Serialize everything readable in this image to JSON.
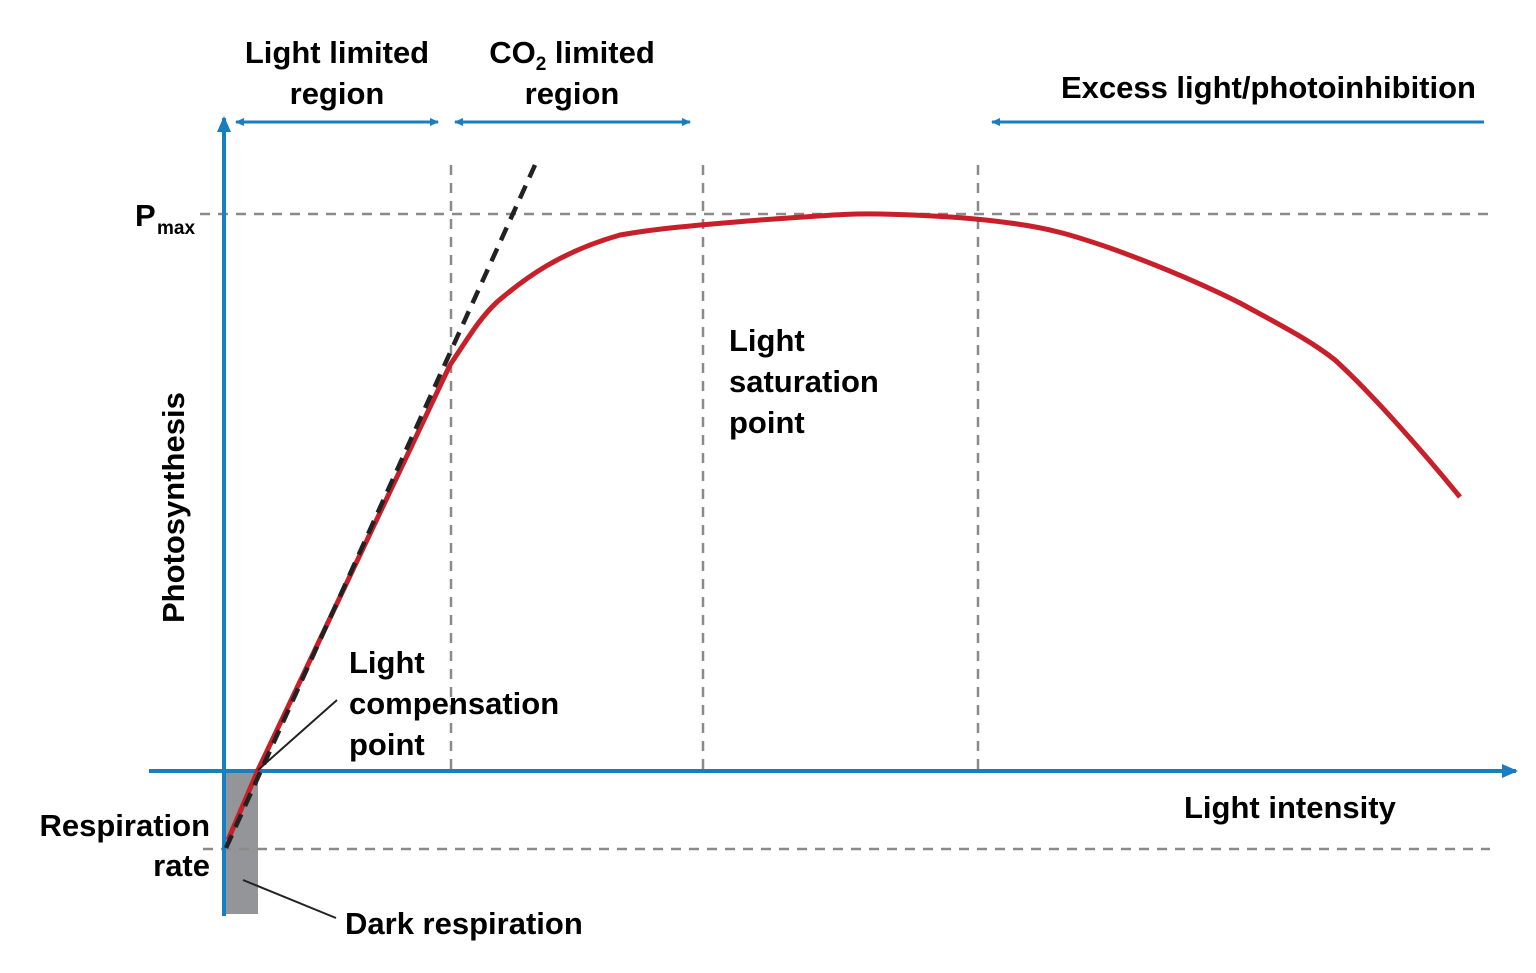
{
  "colors": {
    "axis": "#1a7cc1",
    "curve": "#c8202a",
    "guide": "#8a8a8a",
    "dark_respiration_bar": "#939598",
    "tangent": "#222222"
  },
  "axes": {
    "y_label": "Photosynthesis",
    "x_label": "Light intensity"
  },
  "levels": {
    "pmax_main": "P",
    "pmax_sub": "max",
    "respiration_line1": "Respiration",
    "respiration_line2": "rate"
  },
  "regions": {
    "light_limited": {
      "line1": "Light limited",
      "line2": "region"
    },
    "co2_limited": {
      "line1_a": "CO",
      "line1_sub": "2",
      "line1_b": " limited",
      "line2": "region"
    },
    "excess": "Excess light/photoinhibition"
  },
  "annotations": {
    "saturation": [
      "Light",
      "saturation",
      "point"
    ],
    "compensation": [
      "Light",
      "compensation",
      "point"
    ],
    "dark_respiration": "Dark respiration"
  }
}
